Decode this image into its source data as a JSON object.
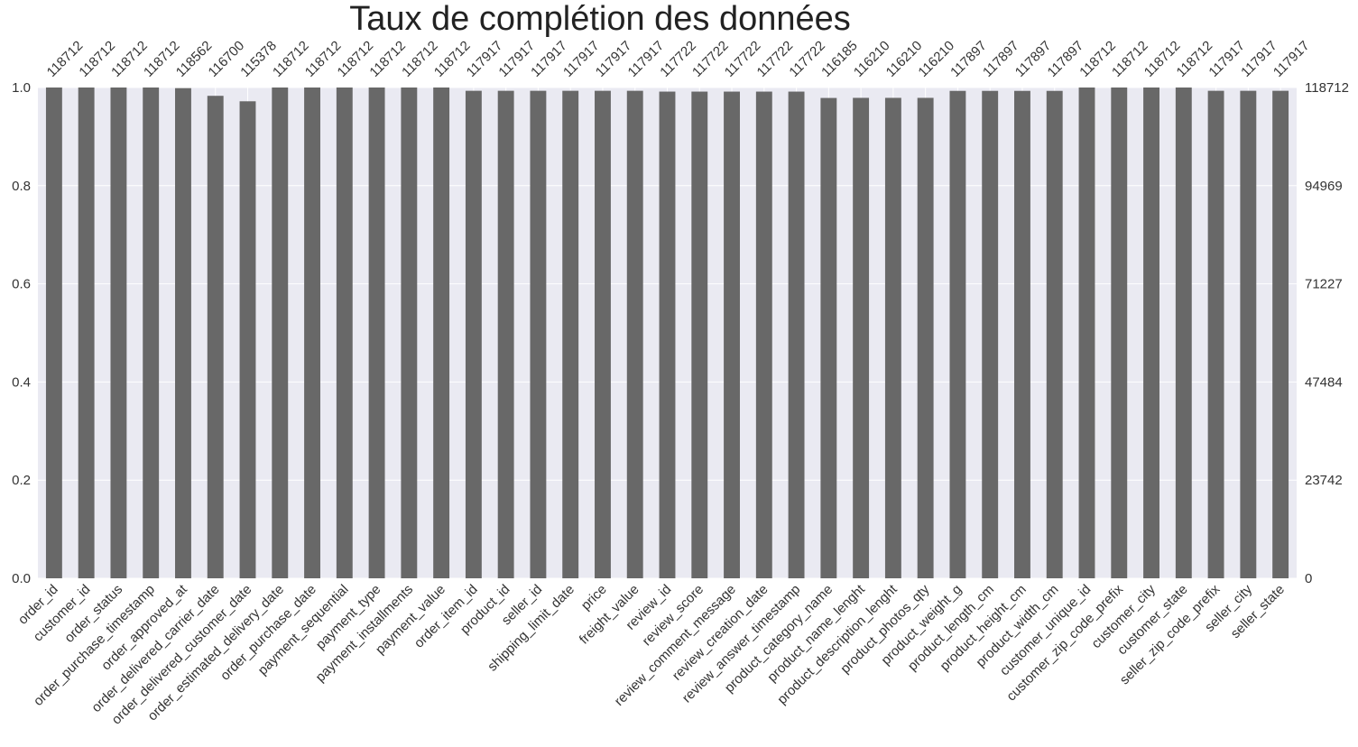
{
  "chart_data": {
    "type": "bar",
    "title": "Taux de complétion des données",
    "xlabel": "",
    "ylabel": "",
    "ylim": [
      0,
      1
    ],
    "total_rows": 118712,
    "grid": true,
    "left_axis_ticks": [
      "0.0",
      "0.2",
      "0.4",
      "0.6",
      "0.8",
      "1.0"
    ],
    "right_axis_ticks": [
      "0",
      "23742",
      "47484",
      "71227",
      "94969",
      "118712"
    ],
    "categories": [
      "order_id",
      "customer_id",
      "order_status",
      "order_purchase_timestamp",
      "order_approved_at",
      "order_delivered_carrier_date",
      "order_delivered_customer_date",
      "order_estimated_delivery_date",
      "order_purchase_date",
      "payment_sequential",
      "payment_type",
      "payment_installments",
      "payment_value",
      "order_item_id",
      "product_id",
      "seller_id",
      "shipping_limit_date",
      "price",
      "freight_value",
      "review_id",
      "review_score",
      "review_comment_message",
      "review_creation_date",
      "review_answer_timestamp",
      "product_category_name",
      "product_name_lenght",
      "product_description_lenght",
      "product_photos_qty",
      "product_weight_g",
      "product_length_cm",
      "product_height_cm",
      "product_width_cm",
      "customer_unique_id",
      "customer_zip_code_prefix",
      "customer_city",
      "customer_state",
      "seller_zip_code_prefix",
      "seller_city",
      "seller_state"
    ],
    "values": [
      118712,
      118712,
      118712,
      118712,
      118562,
      116700,
      115378,
      118712,
      118712,
      118712,
      118712,
      118712,
      118712,
      117917,
      117917,
      117917,
      117917,
      117917,
      117917,
      117722,
      117722,
      117722,
      117722,
      117722,
      116185,
      116210,
      116210,
      116210,
      117897,
      117897,
      117897,
      117897,
      118712,
      118712,
      118712,
      118712,
      117917,
      117917,
      117917
    ],
    "colors": {
      "bar": "#686868",
      "plot_background": "#eaeaf2",
      "grid": "#ffffff",
      "text": "#333333"
    }
  }
}
